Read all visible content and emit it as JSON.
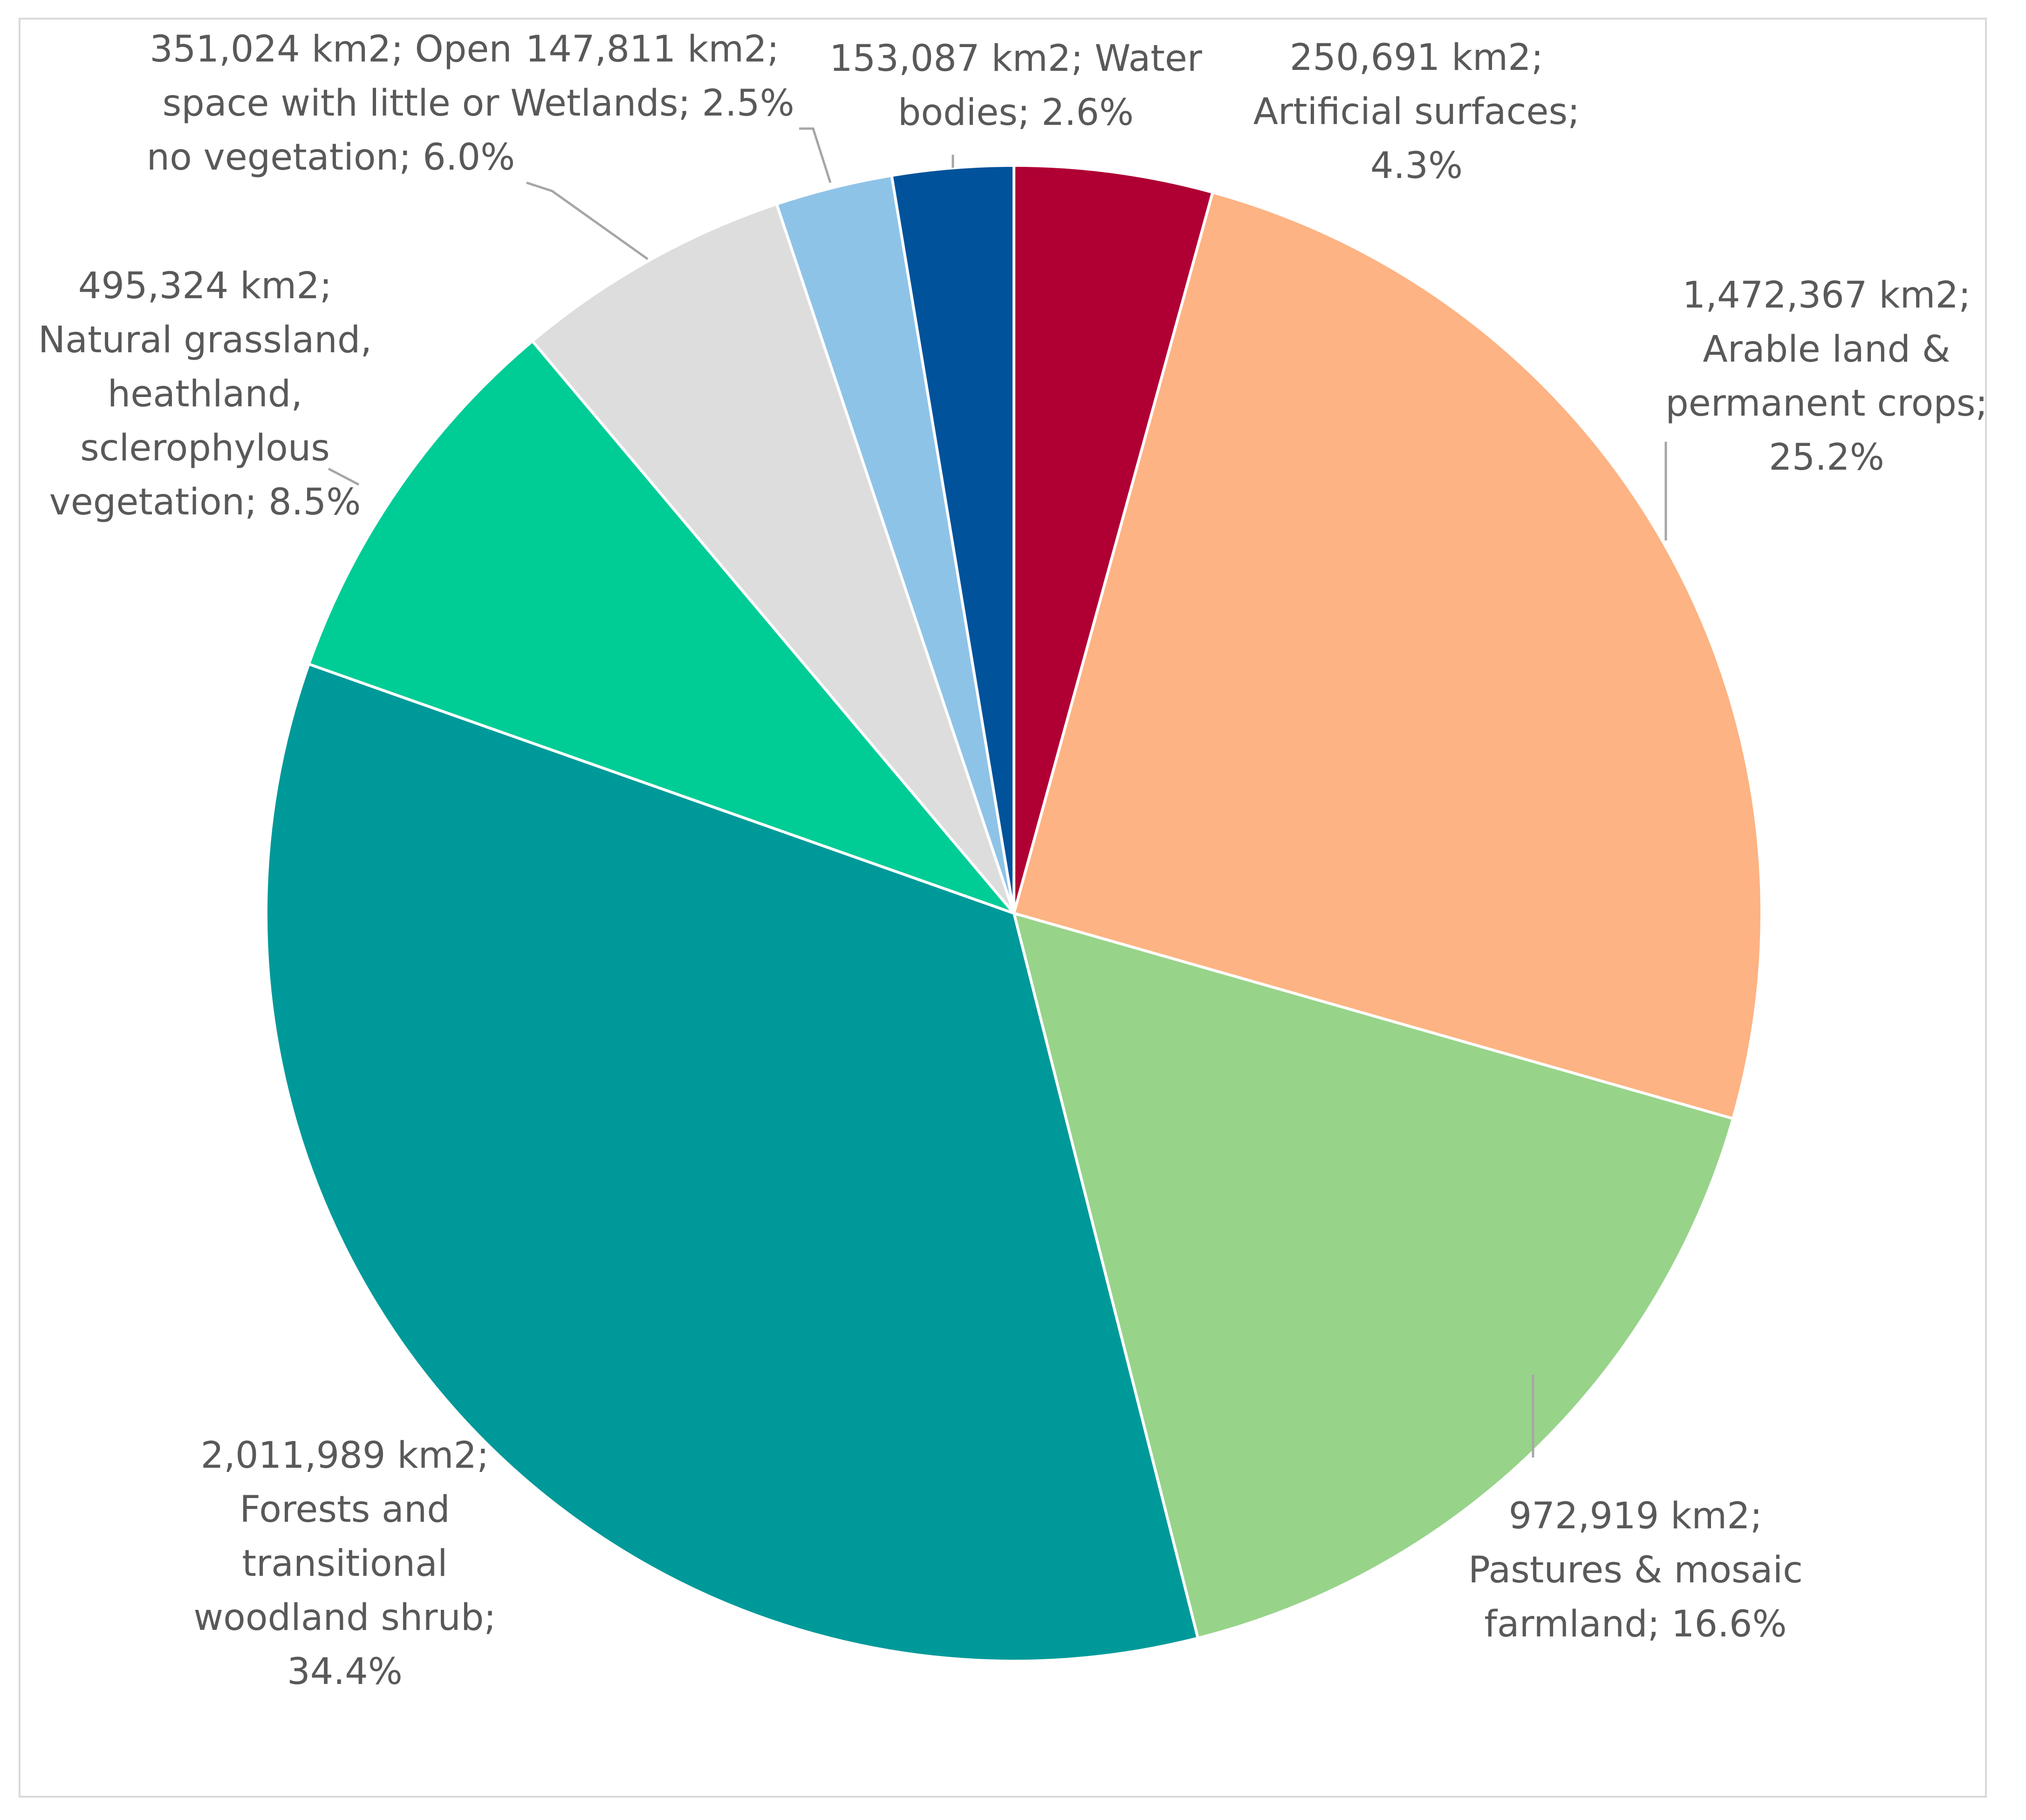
{
  "chart_data": {
    "type": "pie",
    "title": "",
    "slices": [
      {
        "name": "Artificial surfaces",
        "area": "250,691 km2",
        "value": 250691,
        "percent": "4.3%",
        "color": "#B00033",
        "label_lines": [
          "250,691 km2;",
          "Artificial surfaces;",
          "4.3%"
        ]
      },
      {
        "name": "Arable land & permanent crops",
        "area": "1,472,367 km2",
        "value": 1472367,
        "percent": "25.2%",
        "color": "#FDB383",
        "label_lines": [
          "1,472,367 km2;",
          "Arable land &",
          "permanent crops;",
          "25.2%"
        ]
      },
      {
        "name": "Pastures & mosaic farmland",
        "area": "972,919 km2",
        "value": 972919,
        "percent": "16.6%",
        "color": "#98D38A",
        "label_lines": [
          "972,919 km2;",
          "Pastures & mosaic",
          "farmland; 16.6%"
        ]
      },
      {
        "name": "Forests and transitional woodland shrub",
        "area": "2,011,989 km2",
        "value": 2011989,
        "percent": "34.4%",
        "color": "#009999",
        "label_lines": [
          "2,011,989 km2;",
          "Forests and",
          "transitional",
          "woodland shrub;",
          "34.4%"
        ]
      },
      {
        "name": "Natural grassland, heathland, sclerophylous vegetation",
        "area": "495,324 km2",
        "value": 495324,
        "percent": "8.5%",
        "color": "#00CC96",
        "label_lines": [
          "495,324 km2;",
          "Natural grassland,",
          "heathland,",
          "sclerophylous",
          "vegetation; 8.5%"
        ]
      },
      {
        "name": "Open space with little or no vegetation",
        "area": "351,024 km2",
        "value": 351024,
        "percent": "6.0%",
        "color": "#DDDDDD",
        "label_lines": [
          "351,024 km2; Open",
          "space with little or",
          "no vegetation; 6.0%"
        ]
      },
      {
        "name": "Wetlands",
        "area": "147,811 km2",
        "value": 147811,
        "percent": "2.5%",
        "color": "#8EC3E8",
        "label_lines": [
          "147,811 km2;",
          "Wetlands; 2.5%"
        ]
      },
      {
        "name": "Water bodies",
        "area": "153,087 km2",
        "value": 153087,
        "percent": "2.6%",
        "color": "#00529B",
        "label_lines": [
          "153,087 km2; Water",
          "bodies; 2.6%"
        ]
      }
    ],
    "legend": "none",
    "start_angle": "12 o'clock",
    "direction": "clockwise"
  }
}
